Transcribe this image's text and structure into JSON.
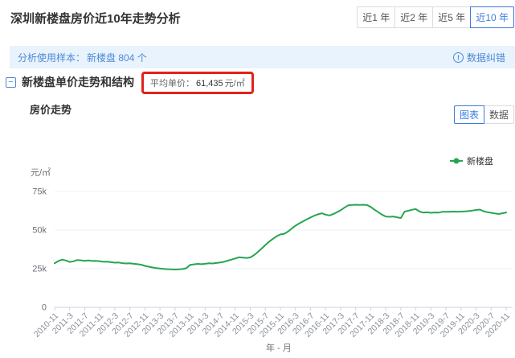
{
  "header": {
    "title": "深圳新楼盘房价近10年走势分析",
    "range_tabs": [
      {
        "label": "近1 年",
        "active": false
      },
      {
        "label": "近2 年",
        "active": false
      },
      {
        "label": "近5 年",
        "active": false
      },
      {
        "label": "近10 年",
        "active": true
      }
    ]
  },
  "sample_bar": {
    "label": "分析使用样本：",
    "sample": "新楼盘 804 个",
    "info_glyph": "!",
    "correction": "数据纠错"
  },
  "section": {
    "collapse_glyph": "−",
    "title": "新楼盘单价走势和结构",
    "avg_label": "平均单价：",
    "avg_value": "61,435",
    "avg_unit": "元/㎡",
    "highlight_color": "#e0231c"
  },
  "chart_header": {
    "title": "房价走势",
    "toggle": [
      {
        "label": "图表",
        "active": true
      },
      {
        "label": "数据",
        "active": false
      }
    ]
  },
  "chart_data": {
    "type": "line",
    "title": "房价走势",
    "unit_label": "元/㎡",
    "xlabel": "年 - 月",
    "ylim": [
      0,
      75000
    ],
    "grid": true,
    "legend_position": "top-right",
    "yticks": [
      {
        "label": "0",
        "value": 0
      },
      {
        "label": "25k",
        "value": 25000
      },
      {
        "label": "50k",
        "value": 50000
      },
      {
        "label": "75k",
        "value": 75000
      }
    ],
    "x_tick_every": 4,
    "x": [
      "2010-11",
      "2010-12",
      "2011-1",
      "2011-2",
      "2011-3",
      "2011-4",
      "2011-5",
      "2011-6",
      "2011-7",
      "2011-8",
      "2011-9",
      "2011-10",
      "2011-11",
      "2011-12",
      "2012-1",
      "2012-2",
      "2012-3",
      "2012-4",
      "2012-5",
      "2012-6",
      "2012-7",
      "2012-8",
      "2012-9",
      "2012-10",
      "2012-11",
      "2012-12",
      "2013-1",
      "2013-2",
      "2013-3",
      "2013-4",
      "2013-5",
      "2013-6",
      "2013-7",
      "2013-8",
      "2013-9",
      "2013-10",
      "2013-11",
      "2013-12",
      "2014-1",
      "2014-2",
      "2014-3",
      "2014-4",
      "2014-5",
      "2014-6",
      "2014-7",
      "2014-8",
      "2014-9",
      "2014-10",
      "2014-11",
      "2014-12",
      "2015-1",
      "2015-2",
      "2015-3",
      "2015-4",
      "2015-5",
      "2015-6",
      "2015-7",
      "2015-8",
      "2015-9",
      "2015-10",
      "2015-11",
      "2015-12",
      "2016-1",
      "2016-2",
      "2016-3",
      "2016-4",
      "2016-5",
      "2016-6",
      "2016-7",
      "2016-8",
      "2016-9",
      "2016-10",
      "2016-11",
      "2016-12",
      "2017-1",
      "2017-2",
      "2017-3",
      "2017-4",
      "2017-5",
      "2017-6",
      "2017-7",
      "2017-8",
      "2017-9",
      "2017-10",
      "2017-11",
      "2017-12",
      "2018-1",
      "2018-2",
      "2018-3",
      "2018-4",
      "2018-5",
      "2018-6",
      "2018-7",
      "2018-8",
      "2018-9",
      "2018-10",
      "2018-11",
      "2018-12",
      "2019-1",
      "2019-2",
      "2019-3",
      "2019-4",
      "2019-5",
      "2019-6",
      "2019-7",
      "2019-8",
      "2019-9",
      "2019-10",
      "2019-11",
      "2019-12",
      "2020-1",
      "2020-2",
      "2020-3",
      "2020-4",
      "2020-5",
      "2020-6",
      "2020-7",
      "2020-8",
      "2020-9",
      "2020-10",
      "2020-11"
    ],
    "series": [
      {
        "name": "新楼盘",
        "color": "#26a551",
        "values": [
          28500,
          30000,
          30900,
          30300,
          29400,
          29800,
          30600,
          30400,
          30100,
          30300,
          30000,
          30100,
          29800,
          29500,
          29600,
          29200,
          28900,
          29000,
          28600,
          28400,
          28500,
          28200,
          27900,
          27600,
          26800,
          26300,
          25800,
          25400,
          25100,
          24900,
          24700,
          24600,
          24500,
          24600,
          24800,
          25300,
          27500,
          27800,
          28100,
          27900,
          28200,
          28500,
          28400,
          28700,
          29000,
          29500,
          30200,
          30900,
          31600,
          32400,
          32200,
          32000,
          32300,
          33800,
          35800,
          38000,
          40300,
          42500,
          44300,
          46000,
          47200,
          47600,
          49000,
          51000,
          52800,
          54300,
          55600,
          57000,
          58200,
          59300,
          60200,
          60900,
          60000,
          59500,
          60300,
          61500,
          62800,
          64500,
          66000,
          66300,
          66400,
          66300,
          66400,
          66200,
          65000,
          63200,
          61600,
          60000,
          58800,
          58600,
          58800,
          58300,
          57800,
          62000,
          62500,
          63200,
          63600,
          62000,
          61300,
          61500,
          61200,
          61400,
          61300,
          61800,
          61900,
          61800,
          62000,
          61900,
          62000,
          62100,
          62300,
          62600,
          63000,
          63300,
          62200,
          61600,
          61200,
          60800,
          60400,
          60900,
          61400
        ]
      }
    ]
  }
}
